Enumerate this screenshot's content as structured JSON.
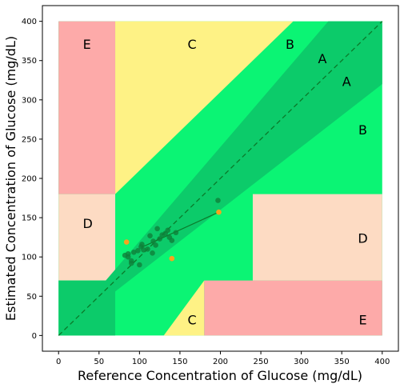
{
  "chart_data": {
    "type": "scatter",
    "title": "",
    "xlabel": "Reference Concentration of Glucose (mg/dL)",
    "ylabel": "Estimated Concentration of Glucose (mg/dL)",
    "xlim": [
      -20,
      420
    ],
    "ylim": [
      -20,
      420
    ],
    "x_ticks": [
      "0",
      "50",
      "100",
      "150",
      "200",
      "250",
      "300",
      "350",
      "400"
    ],
    "y_ticks": [
      "0",
      "50",
      "100",
      "150",
      "200",
      "250",
      "300",
      "350",
      "400"
    ],
    "grid": false,
    "legend": "none",
    "colors": {
      "zone_A_inner": "#0ccb6a",
      "zone_B": "#0bf474",
      "zone_C": "#fef285",
      "zone_D": "#fddbc3",
      "zone_E": "#fdaaa9",
      "points_main": "#0f7f3a",
      "points_outlier": "#f7a31e",
      "identity_line": "#0a7a2a",
      "fit_line": "#0a7a2a"
    },
    "zone_labels": [
      {
        "text": "E",
        "x": 35,
        "y": 371
      },
      {
        "text": "C",
        "x": 165,
        "y": 371
      },
      {
        "text": "B",
        "x": 286,
        "y": 371
      },
      {
        "text": "A",
        "x": 326,
        "y": 353
      },
      {
        "text": "A",
        "x": 356,
        "y": 324
      },
      {
        "text": "B",
        "x": 376,
        "y": 262
      },
      {
        "text": "D",
        "x": 36,
        "y": 143
      },
      {
        "text": "D",
        "x": 376,
        "y": 124
      },
      {
        "text": "C",
        "x": 165,
        "y": 20
      },
      {
        "text": "E",
        "x": 376,
        "y": 20
      }
    ],
    "series": [
      {
        "x": [
          82,
          86,
          86,
          90,
          90,
          93,
          98,
          100,
          102,
          105,
          103,
          110,
          113,
          116,
          117,
          120,
          122,
          125,
          128,
          132,
          135,
          137,
          140,
          145,
          197
        ],
        "y": [
          102,
          104,
          100,
          95,
          92,
          106,
          108,
          90,
          113,
          109,
          116,
          110,
          127,
          105,
          120,
          115,
          136,
          123,
          128,
          130,
          134,
          125,
          121,
          131,
          172
        ]
      },
      {
        "x": [
          84,
          140,
          198
        ],
        "y": [
          119,
          98,
          157
        ]
      }
    ],
    "fit_line": {
      "x": [
        102,
        198
      ],
      "y": [
        112,
        157
      ]
    },
    "identity_line": {
      "x": [
        0,
        400
      ],
      "y": [
        0,
        400
      ]
    }
  }
}
